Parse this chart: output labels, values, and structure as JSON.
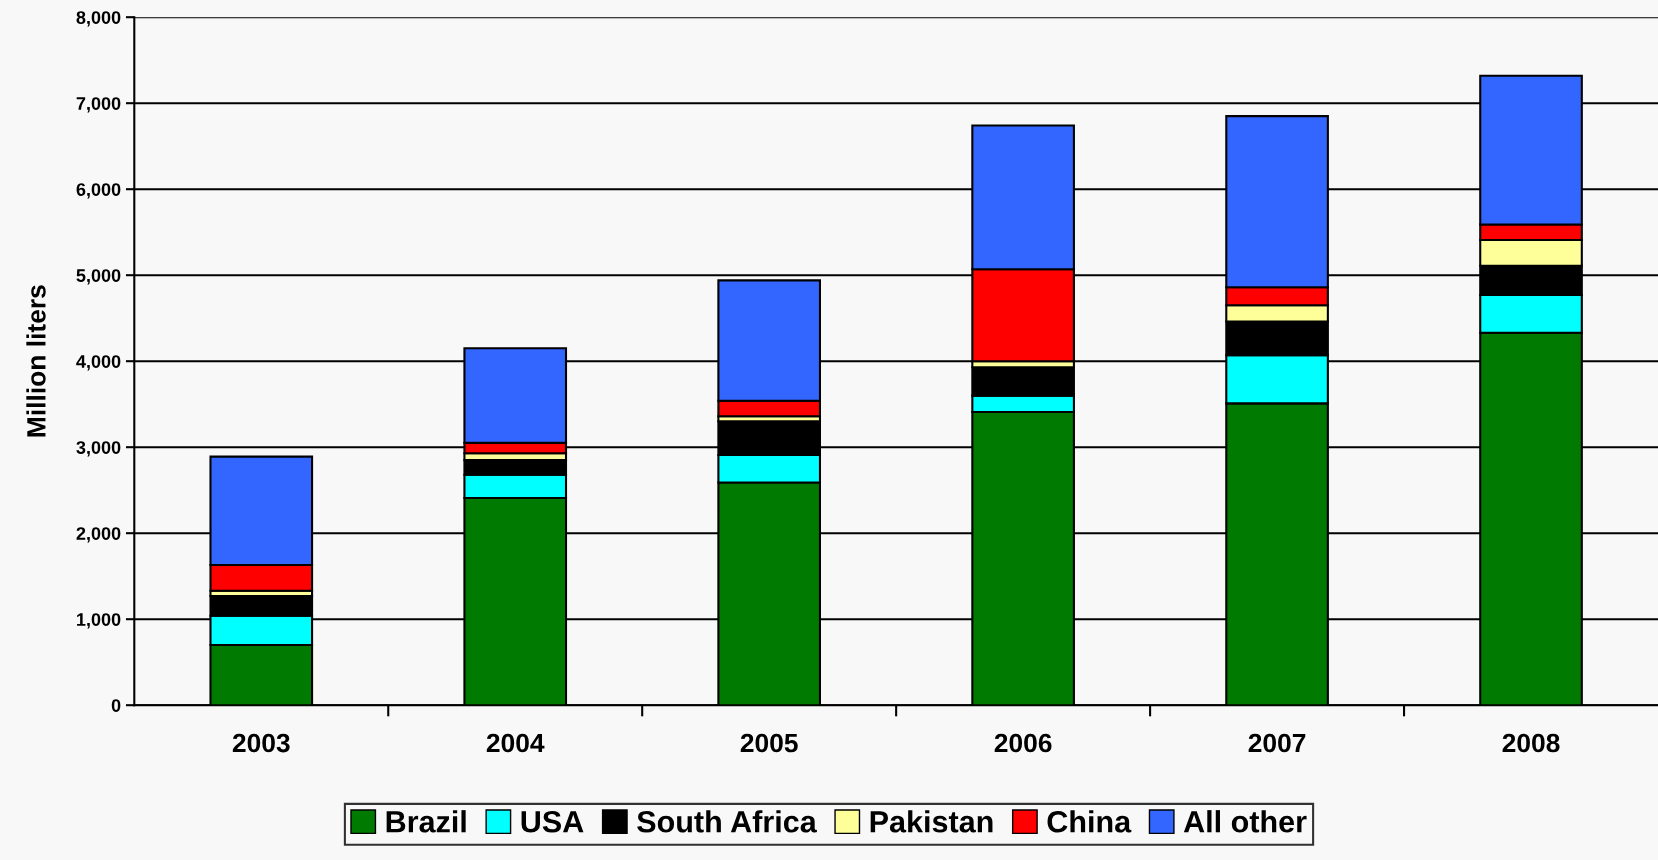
{
  "chart_data": {
    "type": "bar",
    "stacked": true,
    "ylabel": "Million liters",
    "categories": [
      "2003",
      "2004",
      "2005",
      "2006",
      "2007",
      "2008"
    ],
    "series": [
      {
        "name": "Brazil",
        "color": "#007a00",
        "values": [
          700,
          2410,
          2590,
          3410,
          3510,
          4330
        ]
      },
      {
        "name": "USA",
        "color": "#00ffff",
        "values": [
          340,
          270,
          320,
          190,
          560,
          440
        ]
      },
      {
        "name": "South Africa",
        "color": "#000000",
        "values": [
          230,
          170,
          390,
          330,
          390,
          340
        ]
      },
      {
        "name": "Pakistan",
        "color": "#ffff99",
        "values": [
          60,
          80,
          60,
          70,
          190,
          300
        ]
      },
      {
        "name": "China",
        "color": "#ff0000",
        "values": [
          300,
          120,
          180,
          1070,
          210,
          180
        ]
      },
      {
        "name": "All other",
        "color": "#3366ff",
        "values": [
          1260,
          1100,
          1400,
          1670,
          1990,
          1730
        ]
      }
    ],
    "ylim": [
      0,
      8000
    ],
    "yticks": [
      {
        "value": 0,
        "label": "0"
      },
      {
        "value": 1000,
        "label": "1,000"
      },
      {
        "value": 2000,
        "label": "2,000"
      },
      {
        "value": 3000,
        "label": "3,000"
      },
      {
        "value": 4000,
        "label": "4,000"
      },
      {
        "value": 5000,
        "label": "5,000"
      },
      {
        "value": 6000,
        "label": "6,000"
      },
      {
        "value": 7000,
        "label": "7,000"
      },
      {
        "value": 8000,
        "label": "8,000"
      }
    ],
    "grid": "y",
    "legend": "bottom"
  }
}
